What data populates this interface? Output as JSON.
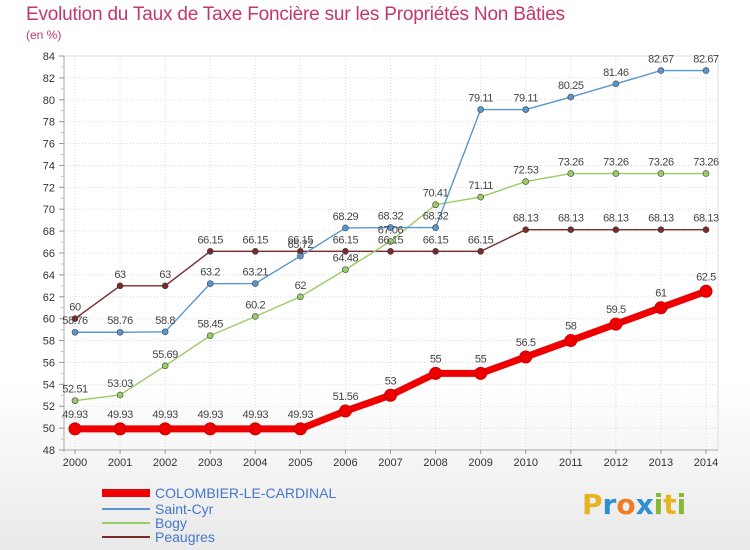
{
  "title": "Evolution du Taux de Taxe Foncière sur les Propriétés Non Bâties",
  "unit_label": "(en %)",
  "logo": {
    "letters": [
      "P",
      "r",
      "o",
      "x",
      "i",
      "t",
      "i"
    ],
    "colors": [
      "#e8b321",
      "#2f8fd0",
      "#f07c23",
      "#2f8fd0",
      "#86b832",
      "#e8b321",
      "#86b832"
    ]
  },
  "chart_data": {
    "type": "line",
    "title": "Evolution du Taux de Taxe Foncière sur les Propriétés Non Bâties",
    "ylabel": "(en %)",
    "xlabel": "",
    "x": [
      "2000",
      "2001",
      "2002",
      "2003",
      "2004",
      "2005",
      "2006",
      "2007",
      "2008",
      "2009",
      "2010",
      "2011",
      "2012",
      "2013",
      "2014"
    ],
    "ylim": [
      48,
      84
    ],
    "yticks": [
      48,
      50,
      52,
      54,
      56,
      58,
      60,
      62,
      64,
      66,
      68,
      70,
      72,
      74,
      76,
      78,
      80,
      82,
      84
    ],
    "grid": true,
    "legend_position": "bottom-left",
    "series": [
      {
        "name": "COLOMBIER-LE-CARDINAL",
        "color": "#ee0000",
        "values": [
          49.93,
          49.93,
          49.93,
          49.93,
          49.93,
          49.93,
          51.56,
          53,
          55,
          55,
          56.5,
          58,
          59.5,
          61,
          62.5
        ],
        "labels": [
          "49.93",
          "49.93",
          "49.93",
          "49.93",
          "49.93",
          "49.93",
          "51.56",
          "53",
          "55",
          "55",
          "56.5",
          "58",
          "59.5",
          "61",
          "62.5"
        ]
      },
      {
        "name": "Saint-Cyr",
        "color": "#5896cf",
        "values": [
          58.76,
          58.76,
          58.8,
          63.2,
          63.21,
          65.72,
          68.29,
          68.32,
          68.32,
          79.11,
          79.11,
          80.25,
          81.46,
          82.67,
          82.67
        ],
        "labels": [
          "58.76",
          "58.76",
          "58.8",
          "63.2",
          "63.21",
          "65.72",
          "68.29",
          "68.32",
          "68.32",
          "79.11",
          "79.11",
          "80.25",
          "81.46",
          "82.67",
          "82.67"
        ]
      },
      {
        "name": "Bogy",
        "color": "#99cc66",
        "values": [
          52.51,
          53.03,
          55.69,
          58.45,
          60.2,
          62,
          64.48,
          67.06,
          70.41,
          71.11,
          72.53,
          73.26,
          73.26,
          73.26,
          73.26
        ],
        "labels": [
          "52.51",
          "53.03",
          "55.69",
          "58.45",
          "60.2",
          "62",
          "64.48",
          "67.06",
          "70.41",
          "71.11",
          "72.53",
          "73.26",
          "73.26",
          "73.26",
          "73.26"
        ]
      },
      {
        "name": "Peaugres",
        "color": "#7a2a2a",
        "values": [
          60,
          63,
          63,
          66.15,
          66.15,
          66.15,
          66.15,
          66.15,
          66.15,
          66.15,
          68.13,
          68.13,
          68.13,
          68.13,
          68.13
        ],
        "labels": [
          "60",
          "63",
          "63",
          "66.15",
          "66.15",
          "66.15",
          "66.15",
          "66.15",
          "66.15",
          "66.15",
          "68.13",
          "68.13",
          "68.13",
          "68.13",
          "68.13"
        ]
      }
    ]
  }
}
